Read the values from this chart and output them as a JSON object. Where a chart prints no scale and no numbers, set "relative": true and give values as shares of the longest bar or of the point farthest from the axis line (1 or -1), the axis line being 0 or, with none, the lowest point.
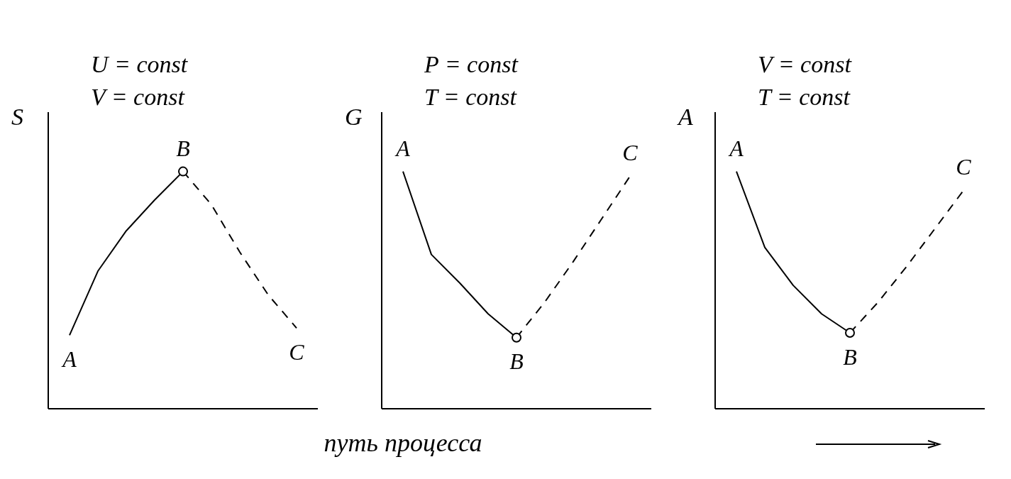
{
  "chart_data": [
    {
      "type": "line",
      "relative": true,
      "title": "U = const",
      "subtitle": "V = const",
      "ylabel": "S",
      "categories": [
        null,
        null,
        null,
        null,
        null,
        null,
        null,
        null,
        null
      ],
      "series": [
        {
          "color": "#000000",
          "line_style": "solid",
          "values": [
            0.31,
            0.58,
            0.75,
            0.88,
            1,
            null,
            null,
            null,
            null
          ]
        },
        {
          "color": "#000000",
          "line_style": "dashed",
          "values": [
            null,
            null,
            null,
            null,
            1,
            0.86,
            0.66,
            0.48,
            0.34
          ]
        }
      ],
      "annotations": [
        "A",
        "B",
        "C"
      ]
    },
    {
      "type": "line",
      "relative": true,
      "title": "P = const",
      "subtitle": "T = const",
      "ylabel": "G",
      "xlabel": "путь процесса",
      "categories": [
        null,
        null,
        null,
        null,
        null,
        null,
        null,
        null,
        null
      ],
      "series": [
        {
          "color": "#000000",
          "line_style": "solid",
          "values": [
            1,
            0.65,
            0.53,
            0.4,
            0.3,
            null,
            null,
            null,
            null
          ]
        },
        {
          "color": "#000000",
          "line_style": "dashed",
          "values": [
            null,
            null,
            null,
            null,
            0.3,
            0.45,
            0.62,
            0.8,
            0.98
          ]
        }
      ],
      "annotations": [
        "A",
        "B",
        "C"
      ]
    },
    {
      "type": "line",
      "relative": true,
      "title": "V = const",
      "subtitle": "T = const",
      "ylabel": "A",
      "categories": [
        null,
        null,
        null,
        null,
        null,
        null,
        null,
        null,
        null
      ],
      "series": [
        {
          "color": "#000000",
          "line_style": "solid",
          "values": [
            1,
            0.68,
            0.52,
            0.4,
            0.32,
            null,
            null,
            null,
            null
          ]
        },
        {
          "color": "#000000",
          "line_style": "dashed",
          "values": [
            null,
            null,
            null,
            null,
            0.32,
            0.45,
            0.6,
            0.76,
            0.92
          ]
        }
      ],
      "annotations": [
        "A",
        "B",
        "C"
      ]
    }
  ]
}
